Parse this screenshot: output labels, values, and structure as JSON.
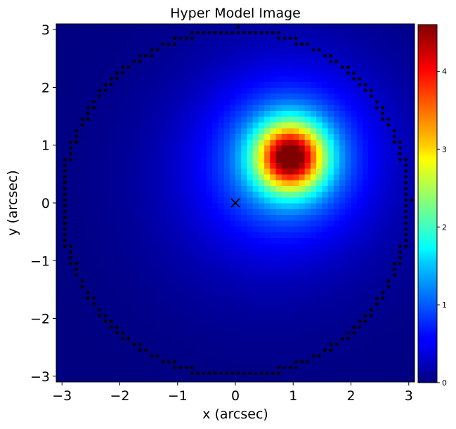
{
  "chart_data": {
    "type": "heatmap",
    "title": "Hyper Model Image",
    "xlabel": "x (arcsec)",
    "ylabel": "y (arcsec)",
    "xlim": [
      -3.1,
      3.1
    ],
    "ylim": [
      -3.1,
      3.1
    ],
    "xticks": [
      -3,
      -2,
      -1,
      0,
      1,
      2,
      3
    ],
    "yticks": [
      -3,
      -2,
      -1,
      0,
      1,
      2,
      3
    ],
    "colormap": "jet",
    "colorbar": {
      "range": [
        0,
        4.6
      ],
      "ticks": [
        0,
        1,
        2,
        3,
        4
      ]
    },
    "grid": false,
    "pixel_scale_arcsec": 0.1,
    "peak": {
      "x": 0.95,
      "y": 0.8,
      "value": 4.6
    },
    "center_marker": {
      "x": 0,
      "y": 0,
      "symbol": "x",
      "color": "#000000"
    },
    "mask_border": {
      "shape": "circle",
      "radius_arcsec": 3.0,
      "color": "#000000"
    }
  }
}
